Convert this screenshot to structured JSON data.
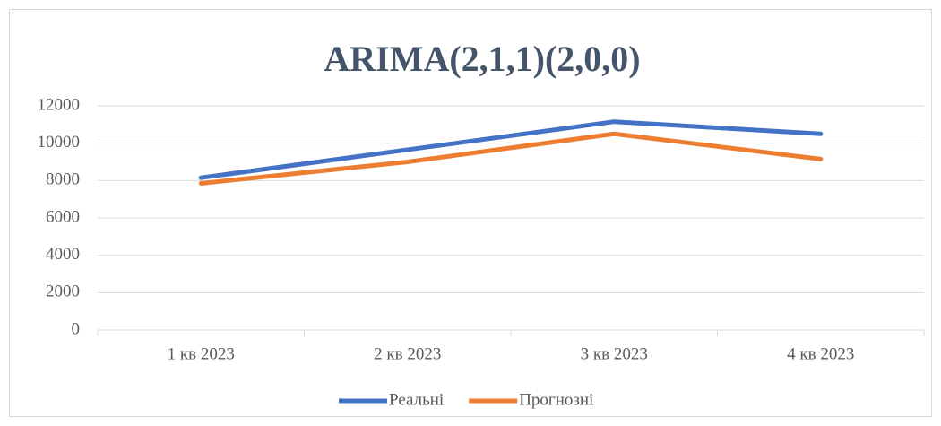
{
  "chart_data": {
    "type": "line",
    "title": "ARIMA(2,1,1)(2,0,0)",
    "categories": [
      "1 кв 2023",
      "2 кв 2023",
      "3 кв 2023",
      "4 кв 2023"
    ],
    "series": [
      {
        "name": "Реальні",
        "color": "#4472c4",
        "values": [
          8150,
          9650,
          11150,
          10500
        ]
      },
      {
        "name": "Прогнозні",
        "color": "#ed7d31",
        "values": [
          7850,
          9000,
          10500,
          9150
        ]
      }
    ],
    "ylim": [
      0,
      12000
    ],
    "yticks": [
      0,
      2000,
      4000,
      6000,
      8000,
      10000,
      12000
    ],
    "grid": true,
    "legend": "bottom"
  }
}
